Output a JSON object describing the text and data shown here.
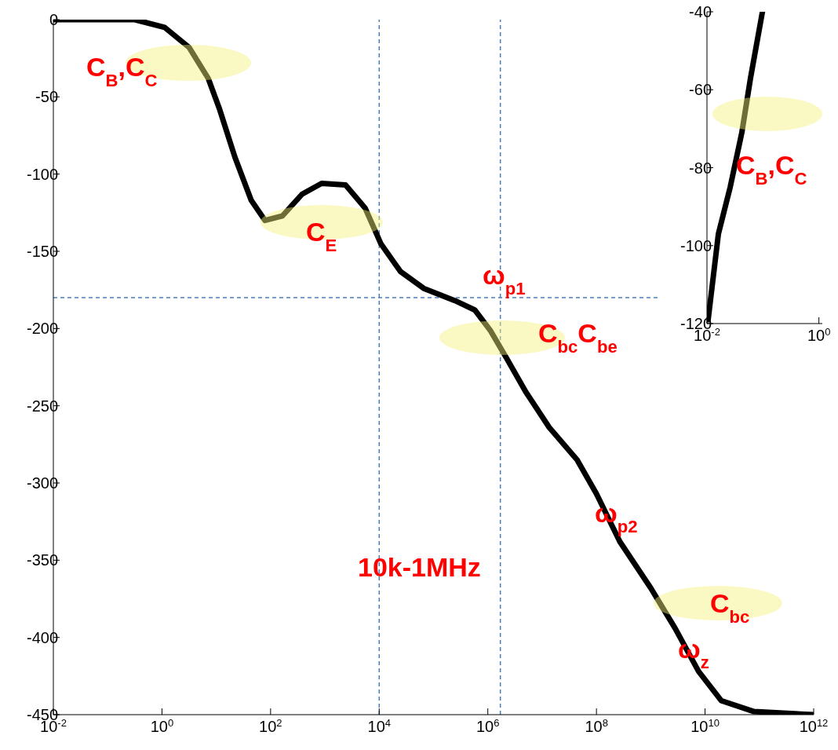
{
  "chart_data": [
    {
      "type": "line",
      "log": "x",
      "line_style": "solid",
      "marker": "none",
      "x": [
        0.01,
        0.316,
        1.12,
        3.16,
        7.1,
        11.5,
        22,
        44,
        79,
        166,
        380,
        870,
        2400,
        5500,
        10700,
        24500,
        66000,
        250000,
        575000,
        1100000,
        2200000,
        5000000,
        13500000,
        44000000,
        100000000,
        270000000,
        1000000000,
        2800000000,
        7600000000,
        20000000000,
        80000000000,
        1000000000000
      ],
      "series": [
        {
          "color": "#000000",
          "values": [
            0,
            0,
            -5,
            -18,
            -38,
            -58,
            -89,
            -117,
            -130,
            -127,
            -113,
            -106,
            -107,
            -122,
            -145,
            -163,
            -174,
            -182,
            -188,
            -201,
            -219,
            -241,
            -264,
            -285,
            -307,
            -338,
            -368,
            -394,
            -422,
            -441,
            -448,
            -450
          ]
        }
      ],
      "xlim": [
        0.01,
        1000000000000
      ],
      "xticks": [
        {
          "value": 0.01,
          "label": "10$^{-2}$"
        },
        {
          "value": 1,
          "label": "10$^{0}$"
        },
        {
          "value": 100,
          "label": "10$^{2}$"
        },
        {
          "value": 10000,
          "label": "10$^{4}$"
        },
        {
          "value": 1000000,
          "label": "10$^{6}$"
        },
        {
          "value": 100000000,
          "label": "10$^{8}$"
        },
        {
          "value": 10000000000,
          "label": "10$^{10}$"
        },
        {
          "value": 1000000000000,
          "label": "10$^{12}$"
        }
      ],
      "ylim": [
        -450,
        0
      ],
      "yticks": [
        -450,
        -400,
        -350,
        -300,
        -250,
        -200,
        -150,
        -100,
        -50,
        0
      ],
      "ref_lines": [
        {
          "axis": "x",
          "value": 10000,
          "color": "#4a7ebb",
          "line_style": "dashed"
        },
        {
          "axis": "x",
          "value": 1700000,
          "color": "#4a7ebb",
          "line_style": "dashed"
        },
        {
          "axis": "y",
          "value": -180,
          "color": "#4a7ebb",
          "line_style": "dashed"
        }
      ],
      "annotations": [
        "C$_{B}$,C$_{C}$",
        "C$_{E}$",
        "ω$_{p1}$",
        "C$_{bc}$C$_{be}$",
        "ω$_{p2}$",
        "10k-1MHz",
        "C$_{bc}$",
        "ω$_{z}$"
      ]
    },
    {
      "type": "line",
      "log": "x",
      "line_style": "solid",
      "marker": "none",
      "x": [
        0.0105,
        0.016,
        0.026,
        0.042,
        0.06,
        0.098
      ],
      "series": [
        {
          "color": "#000000",
          "values": [
            -119,
            -97,
            -85,
            -71,
            -57,
            -40
          ]
        }
      ],
      "xlim": [
        0.01,
        1.15
      ],
      "xticks": [
        {
          "value": 0.01,
          "label": "10$^{-2}$"
        },
        {
          "value": 1,
          "label": "10$^{0}$"
        }
      ],
      "ylim": [
        -120,
        -40
      ],
      "yticks": [
        -120,
        -100,
        -80,
        -60,
        -40
      ],
      "annotations": [
        "C$_{B}$,C$_{C}$"
      ]
    }
  ]
}
